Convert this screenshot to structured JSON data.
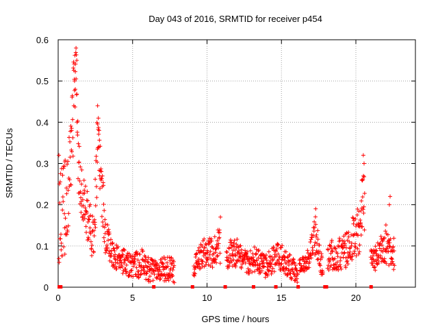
{
  "chart_data": {
    "type": "scatter",
    "title": "Day 043 of 2016, SRMTID for receiver p454",
    "xlabel": "GPS time / hours",
    "ylabel": "SRMTID / TECUs",
    "xlim": [
      0,
      24
    ],
    "ylim": [
      0,
      0.6
    ],
    "x_ticks": [
      0,
      5,
      10,
      15,
      20
    ],
    "y_ticks": [
      0,
      0.1,
      0.2,
      0.3,
      0.4,
      0.5,
      0.6
    ],
    "x_tick_labels": [
      "0",
      "5",
      "10",
      "15",
      "20"
    ],
    "y_tick_labels": [
      "0",
      "0.1",
      "0.2",
      "0.3",
      "0.4",
      "0.5",
      "0.6"
    ],
    "grid": true,
    "marker": "plus",
    "color": "#ff0000",
    "series": [
      {
        "name": "SRMTID",
        "segments": [
          {
            "x_start": 0.05,
            "x_end": 7.8,
            "envelope": [
              [
                0.05,
                0.15,
                0.1
              ],
              [
                0.3,
                0.2,
                0.12
              ],
              [
                0.6,
                0.2,
                0.1
              ],
              [
                0.9,
                0.35,
                0.1
              ],
              [
                1.05,
                0.45,
                0.12
              ],
              [
                1.2,
                0.52,
                0.12
              ],
              [
                1.35,
                0.3,
                0.1
              ],
              [
                1.6,
                0.24,
                0.07
              ],
              [
                1.9,
                0.18,
                0.06
              ],
              [
                2.2,
                0.14,
                0.06
              ],
              [
                2.4,
                0.11,
                0.05
              ],
              [
                2.65,
                0.36,
                0.1
              ],
              [
                2.8,
                0.28,
                0.08
              ],
              [
                3.0,
                0.2,
                0.07
              ],
              [
                3.2,
                0.12,
                0.05
              ],
              [
                3.6,
                0.08,
                0.03
              ],
              [
                4.0,
                0.07,
                0.03
              ],
              [
                4.5,
                0.06,
                0.03
              ],
              [
                5.0,
                0.05,
                0.03
              ],
              [
                5.6,
                0.06,
                0.035
              ],
              [
                6.2,
                0.04,
                0.03
              ],
              [
                6.8,
                0.04,
                0.03
              ],
              [
                7.3,
                0.045,
                0.03
              ],
              [
                7.8,
                0.04,
                0.03
              ]
            ]
          },
          {
            "x_start": 9.1,
            "x_end": 10.9,
            "envelope": [
              [
                9.1,
                0.04,
                0.03
              ],
              [
                9.5,
                0.07,
                0.03
              ],
              [
                10.0,
                0.09,
                0.04
              ],
              [
                10.4,
                0.08,
                0.04
              ],
              [
                10.9,
                0.1,
                0.05
              ]
            ]
          },
          {
            "x_start": 11.3,
            "x_end": 16.1,
            "envelope": [
              [
                11.3,
                0.07,
                0.03
              ],
              [
                11.8,
                0.09,
                0.04
              ],
              [
                12.3,
                0.07,
                0.03
              ],
              [
                12.8,
                0.06,
                0.03
              ],
              [
                13.3,
                0.07,
                0.03
              ],
              [
                13.8,
                0.05,
                0.03
              ],
              [
                14.3,
                0.06,
                0.03
              ],
              [
                14.8,
                0.08,
                0.035
              ],
              [
                15.3,
                0.06,
                0.03
              ],
              [
                15.8,
                0.04,
                0.03
              ],
              [
                16.1,
                0.03,
                0.02
              ]
            ]
          },
          {
            "x_start": 16.2,
            "x_end": 17.8,
            "envelope": [
              [
                16.2,
                0.05,
                0.02
              ],
              [
                16.6,
                0.06,
                0.02
              ],
              [
                17.0,
                0.08,
                0.04
              ],
              [
                17.3,
                0.13,
                0.05
              ],
              [
                17.6,
                0.06,
                0.03
              ],
              [
                17.8,
                0.05,
                0.02
              ]
            ]
          },
          {
            "x_start": 18.1,
            "x_end": 20.6,
            "envelope": [
              [
                18.1,
                0.07,
                0.03
              ],
              [
                18.5,
                0.08,
                0.04
              ],
              [
                19.0,
                0.08,
                0.04
              ],
              [
                19.5,
                0.1,
                0.05
              ],
              [
                19.9,
                0.12,
                0.06
              ],
              [
                20.2,
                0.14,
                0.06
              ],
              [
                20.5,
                0.2,
                0.08
              ]
            ]
          },
          {
            "x_start": 21.0,
            "x_end": 22.6,
            "envelope": [
              [
                21.0,
                0.07,
                0.03
              ],
              [
                21.4,
                0.07,
                0.03
              ],
              [
                21.8,
                0.11,
                0.05
              ],
              [
                22.2,
                0.1,
                0.05
              ],
              [
                22.6,
                0.08,
                0.04
              ]
            ]
          }
        ],
        "peaks": [
          [
            1.2,
            0.58
          ],
          [
            1.25,
            0.55
          ],
          [
            1.1,
            0.5
          ],
          [
            1.15,
            0.48
          ],
          [
            1.05,
            0.44
          ],
          [
            2.65,
            0.44
          ],
          [
            2.7,
            0.41
          ],
          [
            2.75,
            0.38
          ],
          [
            0.05,
            0.32
          ],
          [
            0.9,
            0.38
          ],
          [
            10.9,
            0.17
          ],
          [
            17.3,
            0.19
          ],
          [
            20.5,
            0.32
          ],
          [
            20.55,
            0.3
          ],
          [
            20.4,
            0.26
          ],
          [
            22.3,
            0.22
          ],
          [
            22.25,
            0.2
          ],
          [
            0.45,
            0.08
          ]
        ],
        "gap_markers": [
          0.05,
          0.15,
          6.4,
          9.0,
          11.2,
          13.1,
          14.6,
          16.1,
          17.9,
          18.0,
          21.0
        ]
      }
    ]
  }
}
